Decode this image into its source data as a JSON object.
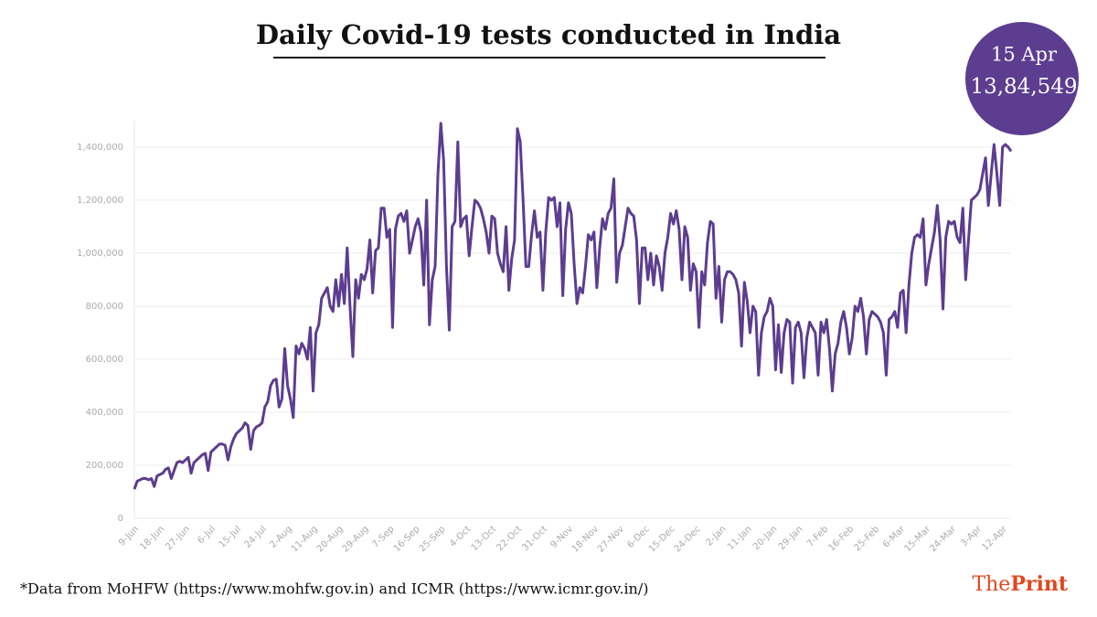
{
  "chart_data": {
    "type": "line",
    "title": "Daily Covid-19 tests conducted in India",
    "callout": {
      "date": "15 Apr",
      "value_label": "13,84,549"
    },
    "source": "*Data from MoHFW (https://www.mohfw.gov.in) and ICMR (https://www.icmr.gov.in/)",
    "logo": [
      "The",
      "Print"
    ],
    "color": "#5c3d8f",
    "ylim": [
      0,
      1500000
    ],
    "yticks": [
      0,
      {
        "value": 200000,
        "label": "200,000"
      },
      {
        "value": 400000,
        "label": "400,000"
      },
      {
        "value": 600000,
        "label": "600,000"
      },
      {
        "value": 800000,
        "label": "800,000"
      },
      {
        "value": 1000000,
        "label": "1,000,000"
      },
      {
        "value": 1200000,
        "label": "1,200,000"
      },
      {
        "value": 1400000,
        "label": "1,400,000"
      }
    ],
    "grid": true,
    "categories": [
      "9-Jun",
      null,
      null,
      null,
      null,
      null,
      null,
      null,
      null,
      "18-Jun",
      null,
      null,
      null,
      null,
      null,
      null,
      null,
      null,
      "27-Jun",
      null,
      null,
      null,
      null,
      null,
      null,
      null,
      null,
      "6-Jul",
      null,
      null,
      null,
      null,
      null,
      null,
      null,
      null,
      "15-Jul",
      null,
      null,
      null,
      null,
      null,
      null,
      null,
      null,
      "24-Jul",
      null,
      null,
      null,
      null,
      null,
      null,
      null,
      null,
      "2-Aug",
      null,
      null,
      null,
      null,
      null,
      null,
      null,
      null,
      "11-Aug",
      null,
      null,
      null,
      null,
      null,
      null,
      null,
      null,
      "20-Aug",
      null,
      null,
      null,
      null,
      null,
      null,
      null,
      null,
      "29-Aug",
      null,
      null,
      null,
      null,
      null,
      null,
      null,
      null,
      "7-Sep",
      null,
      null,
      null,
      null,
      null,
      null,
      null,
      null,
      "16-Sep",
      null,
      null,
      null,
      null,
      null,
      null,
      null,
      null,
      "25-Sep",
      null,
      null,
      null,
      null,
      null,
      null,
      null,
      null,
      "4-Oct",
      null,
      null,
      null,
      null,
      null,
      null,
      null,
      null,
      "13-Oct",
      null,
      null,
      null,
      null,
      null,
      null,
      null,
      null,
      "22-Oct",
      null,
      null,
      null,
      null,
      null,
      null,
      null,
      null,
      "31-Oct",
      null,
      null,
      null,
      null,
      null,
      null,
      null,
      null,
      "9-Nov",
      null,
      null,
      null,
      null,
      null,
      null,
      null,
      null,
      "18-Nov",
      null,
      null,
      null,
      null,
      null,
      null,
      null,
      null,
      "27-Nov",
      null,
      null,
      null,
      null,
      null,
      null,
      null,
      null,
      "6-Dec",
      null,
      null,
      null,
      null,
      null,
      null,
      null,
      null,
      "15-Dec",
      null,
      null,
      null,
      null,
      null,
      null,
      null,
      null,
      "24-Dec",
      null,
      null,
      null,
      null,
      null,
      null,
      null,
      null,
      "2-Jan",
      null,
      null,
      null,
      null,
      null,
      null,
      null,
      null,
      "11-Jan",
      null,
      null,
      null,
      null,
      null,
      null,
      null,
      null,
      "20-Jan",
      null,
      null,
      null,
      null,
      null,
      null,
      null,
      null,
      "29-Jan",
      null,
      null,
      null,
      null,
      null,
      null,
      null,
      null,
      "7-Feb",
      null,
      null,
      null,
      null,
      null,
      null,
      null,
      null,
      "16-Feb",
      null,
      null,
      null,
      null,
      null,
      null,
      null,
      null,
      "25-Feb",
      null,
      null,
      null,
      null,
      null,
      null,
      null,
      null,
      "6-Mar",
      null,
      null,
      null,
      null,
      null,
      null,
      null,
      null,
      "15-Mar",
      null,
      null,
      null,
      null,
      null,
      null,
      null,
      null,
      "24-Mar",
      null,
      null,
      null,
      null,
      null,
      null,
      null,
      null,
      "3-Apr",
      null,
      null,
      null,
      null,
      null,
      null,
      null,
      null,
      "12-Apr",
      null,
      null,
      null
    ],
    "values": [
      110000,
      140000,
      145000,
      150000,
      150000,
      145000,
      150000,
      120000,
      160000,
      165000,
      170000,
      185000,
      190000,
      150000,
      180000,
      210000,
      215000,
      210000,
      220000,
      230000,
      170000,
      210000,
      220000,
      230000,
      240000,
      245000,
      180000,
      250000,
      260000,
      270000,
      280000,
      280000,
      275000,
      220000,
      270000,
      300000,
      320000,
      330000,
      340000,
      360000,
      350000,
      260000,
      330000,
      345000,
      350000,
      360000,
      420000,
      440000,
      500000,
      520000,
      525000,
      420000,
      450000,
      640000,
      500000,
      450000,
      380000,
      650000,
      620000,
      660000,
      640000,
      600000,
      720000,
      480000,
      700000,
      730000,
      830000,
      850000,
      870000,
      800000,
      780000,
      900000,
      800000,
      920000,
      810000,
      1020000,
      800000,
      610000,
      900000,
      830000,
      920000,
      900000,
      940000,
      1050000,
      850000,
      1010000,
      1020000,
      1170000,
      1170000,
      1060000,
      1090000,
      720000,
      1090000,
      1140000,
      1150000,
      1120000,
      1160000,
      1000000,
      1050000,
      1100000,
      1130000,
      1080000,
      880000,
      1200000,
      730000,
      900000,
      950000,
      1300000,
      1490000,
      1350000,
      950000,
      710000,
      1100000,
      1120000,
      1420000,
      1100000,
      1130000,
      1140000,
      990000,
      1100000,
      1200000,
      1190000,
      1170000,
      1130000,
      1080000,
      1000000,
      1140000,
      1130000,
      1000000,
      960000,
      930000,
      1100000,
      860000,
      980000,
      1050000,
      1470000,
      1420000,
      1200000,
      950000,
      950000,
      1070000,
      1160000,
      1060000,
      1080000,
      860000,
      1080000,
      1210000,
      1200000,
      1210000,
      1100000,
      1190000,
      840000,
      1090000,
      1190000,
      1150000,
      960000,
      810000,
      870000,
      850000,
      950000,
      1070000,
      1050000,
      1080000,
      870000,
      1020000,
      1130000,
      1090000,
      1150000,
      1170000,
      1280000,
      890000,
      1000000,
      1030000,
      1100000,
      1170000,
      1150000,
      1140000,
      1050000,
      810000,
      1020000,
      1020000,
      900000,
      1000000,
      880000,
      990000,
      950000,
      860000,
      1000000,
      1060000,
      1150000,
      1110000,
      1160000,
      1090000,
      900000,
      1100000,
      1060000,
      860000,
      960000,
      930000,
      720000,
      930000,
      880000,
      1040000,
      1120000,
      1110000,
      830000,
      950000,
      740000,
      900000,
      930000,
      930000,
      920000,
      900000,
      850000,
      650000,
      890000,
      820000,
      700000,
      800000,
      780000,
      540000,
      700000,
      760000,
      780000,
      830000,
      800000,
      560000,
      730000,
      550000,
      700000,
      750000,
      740000,
      510000,
      720000,
      740000,
      700000,
      530000,
      680000,
      740000,
      720000,
      700000,
      540000,
      740000,
      700000,
      750000,
      640000,
      480000,
      620000,
      660000,
      740000,
      780000,
      720000,
      620000,
      680000,
      800000,
      780000,
      830000,
      760000,
      620000,
      750000,
      780000,
      770000,
      760000,
      740000,
      700000,
      540000,
      750000,
      760000,
      780000,
      720000,
      850000,
      860000,
      700000,
      880000,
      1000000,
      1060000,
      1070000,
      1060000,
      1130000,
      880000,
      960000,
      1020000,
      1080000,
      1180000,
      1050000,
      790000,
      1060000,
      1120000,
      1110000,
      1120000,
      1060000,
      1040000,
      1170000,
      900000,
      1050000,
      1200000,
      1210000,
      1220000,
      1240000,
      1300000,
      1360000,
      1180000,
      1300000,
      1410000,
      1300000,
      1180000,
      1400000,
      1410000,
      1400000,
      1384549
    ]
  }
}
